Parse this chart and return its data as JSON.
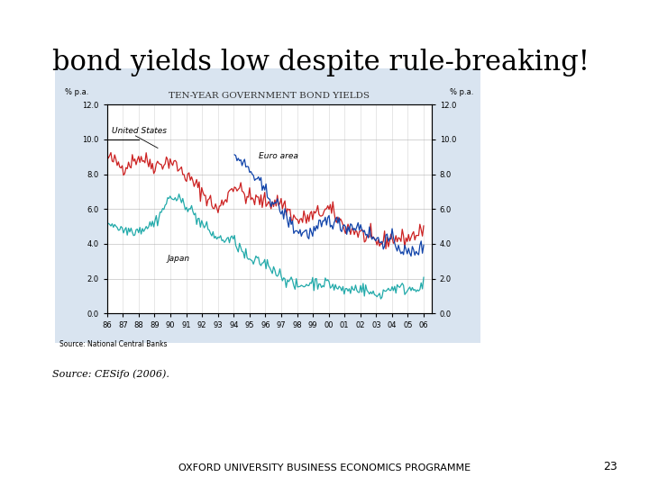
{
  "title": "bond yields low despite rule-breaking!",
  "chart_title": "Ten-Year Government Bond Yields",
  "ylabel_left": "% p.a.",
  "ylabel_right": "% p.a.",
  "source_chart": "Source: National Central Banks",
  "source_bottom": "Source: CESifo (2006).",
  "footer": "OXFORD UNIVERSITY BUSINESS ECONOMICS PROGRAMME",
  "page_num": "23",
  "bg_color": "#d9e4f0",
  "chart_bg": "#ffffff",
  "us_color": "#cc2222",
  "euro_color": "#1144aa",
  "japan_color": "#22aaaa",
  "us_label": "United States",
  "euro_label": "Euro area",
  "japan_label": "Japan",
  "us_base_years": [
    1986,
    1987,
    1988,
    1989,
    1990,
    1991,
    1992,
    1993,
    1994,
    1995,
    1996,
    1997,
    1998,
    1999,
    2000,
    2001,
    2002,
    2003,
    2004,
    2005,
    2006
  ],
  "us_base_vals": [
    9.0,
    8.4,
    9.0,
    8.5,
    8.8,
    7.9,
    7.0,
    5.9,
    7.4,
    6.6,
    6.4,
    6.4,
    5.3,
    5.6,
    6.0,
    5.0,
    4.6,
    4.0,
    4.3,
    4.3,
    4.8
  ],
  "euro_base_years": [
    1994,
    1995,
    1996,
    1997,
    1998,
    1999,
    2000,
    2001,
    2002,
    2003,
    2004,
    2005,
    2006
  ],
  "euro_base_vals": [
    9.2,
    8.2,
    7.0,
    5.9,
    4.7,
    4.6,
    5.4,
    5.0,
    5.0,
    4.2,
    4.2,
    3.4,
    3.8
  ],
  "japan_base_years": [
    1986,
    1987,
    1988,
    1989,
    1990,
    1991,
    1992,
    1993,
    1994,
    1995,
    1996,
    1997,
    1998,
    1999,
    2000,
    2001,
    2002,
    2003,
    2004,
    2005,
    2006
  ],
  "japan_base_vals": [
    5.3,
    4.8,
    4.8,
    5.2,
    6.7,
    6.3,
    5.1,
    4.3,
    4.2,
    3.0,
    2.9,
    2.2,
    1.5,
    1.8,
    1.7,
    1.3,
    1.5,
    1.0,
    1.5,
    1.4,
    1.6
  ]
}
